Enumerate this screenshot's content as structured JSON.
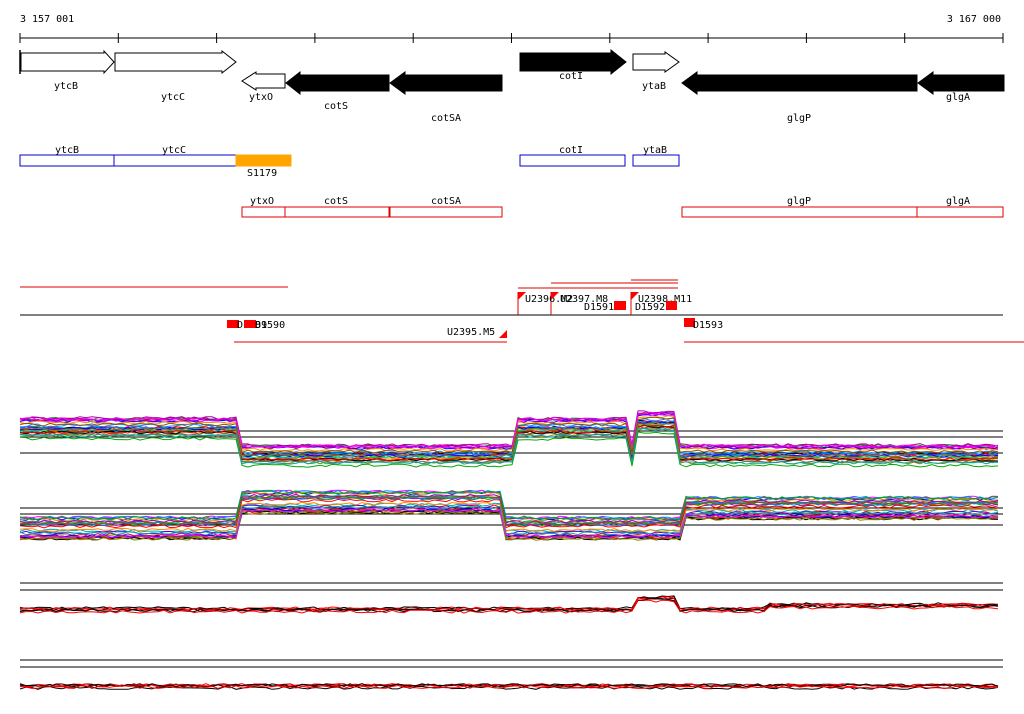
{
  "coordinates": {
    "start": "3 157 001",
    "end": "3 167 000"
  },
  "colors": {
    "gene_fill_dark": "#000000",
    "gene_fill_light": "#ffffff",
    "blue_track": "#0000cc",
    "red_track": "#dd0000",
    "srna_orange": "#ffa500",
    "marker_red": "#ff0000"
  },
  "genes": [
    {
      "name": "ytcB",
      "strand": "+",
      "style": "open"
    },
    {
      "name": "ytcC",
      "strand": "+",
      "style": "open"
    },
    {
      "name": "ytxO",
      "strand": "-",
      "style": "open"
    },
    {
      "name": "cotS",
      "strand": "-",
      "style": "filled"
    },
    {
      "name": "cotSA",
      "strand": "-",
      "style": "filled"
    },
    {
      "name": "cotI",
      "strand": "+",
      "style": "filled"
    },
    {
      "name": "ytaB",
      "strand": "+",
      "style": "open"
    },
    {
      "name": "glgP",
      "strand": "-",
      "style": "filled"
    },
    {
      "name": "glgA",
      "strand": "-",
      "style": "filled"
    }
  ],
  "operons_plus": [
    "ytcB",
    "ytcC",
    "cotI",
    "ytaB"
  ],
  "operons_minus": [
    "ytxO",
    "cotS",
    "cotSA",
    "glgP",
    "glgA"
  ],
  "srna_label": "S1179",
  "upshifts": [
    "U2396.M2",
    "U2397.M8",
    "U2398.M11",
    "U2395.M5"
  ],
  "downshifts": [
    "D1589",
    "D1590",
    "D1591",
    "D1592",
    "D1593"
  ]
}
